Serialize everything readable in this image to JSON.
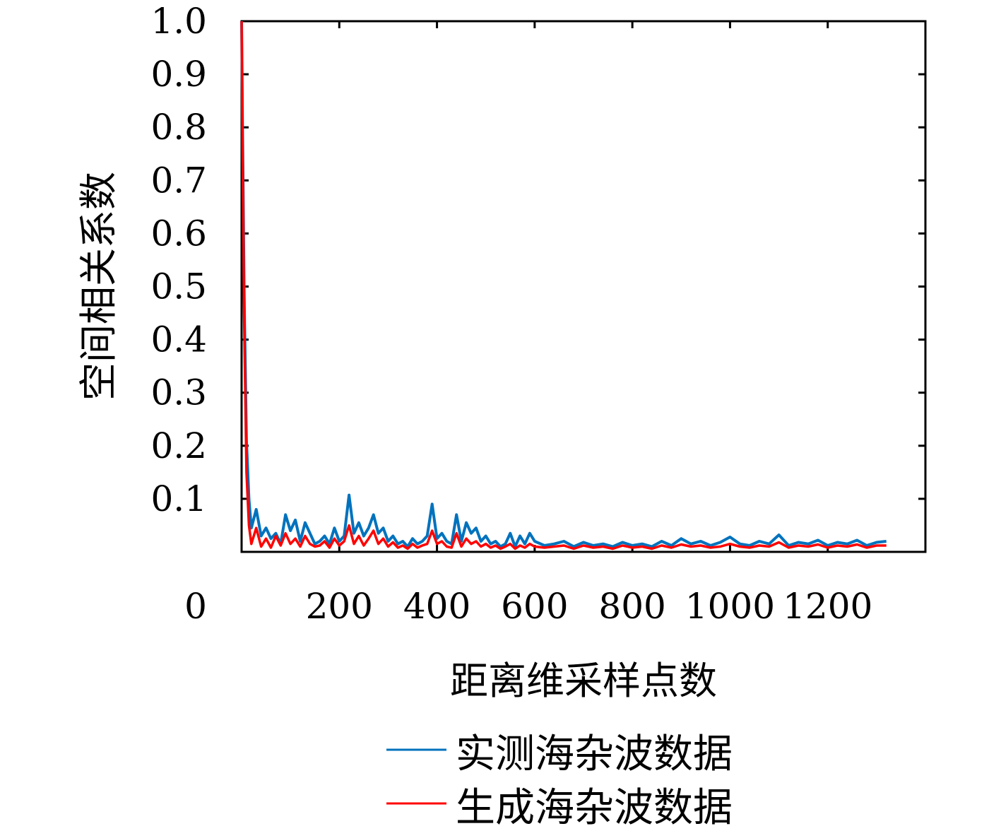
{
  "chart_data": {
    "type": "line",
    "title": "",
    "xlabel": "距离维采样点数",
    "ylabel": "空间相关系数",
    "xlim": [
      0,
      1400
    ],
    "ylim": [
      0,
      1.0
    ],
    "x_ticks": [
      0,
      200,
      400,
      600,
      800,
      1000,
      1200
    ],
    "x_tick_labels": [
      "0",
      "200",
      "400",
      "600",
      "800",
      "1000",
      "1200"
    ],
    "y_ticks": [
      0.1,
      0.2,
      0.3,
      0.4,
      0.5,
      0.6,
      0.7,
      0.8,
      0.9,
      1.0
    ],
    "y_tick_labels": [
      "0.1",
      "0.2",
      "0.3",
      "0.4",
      "0.5",
      "0.6",
      "0.7",
      "0.8",
      "0.9",
      "1.0"
    ],
    "grid": false,
    "legend_position": "bottom",
    "series": [
      {
        "name": "实测海杂波数据",
        "color": "#0072BD",
        "x": [
          0,
          5,
          10,
          15,
          20,
          30,
          40,
          50,
          60,
          70,
          80,
          90,
          100,
          110,
          120,
          130,
          140,
          150,
          160,
          170,
          180,
          190,
          200,
          210,
          220,
          230,
          240,
          250,
          260,
          270,
          280,
          290,
          300,
          310,
          320,
          330,
          340,
          350,
          360,
          370,
          380,
          390,
          400,
          410,
          420,
          430,
          440,
          450,
          460,
          470,
          480,
          490,
          500,
          510,
          520,
          530,
          540,
          550,
          560,
          570,
          580,
          590,
          600,
          620,
          640,
          660,
          680,
          700,
          720,
          740,
          760,
          780,
          800,
          820,
          840,
          860,
          880,
          900,
          920,
          940,
          960,
          980,
          1000,
          1020,
          1040,
          1060,
          1080,
          1100,
          1120,
          1140,
          1160,
          1180,
          1200,
          1220,
          1240,
          1260,
          1280,
          1300,
          1320
        ],
        "values": [
          1.0,
          0.5,
          0.21,
          0.1,
          0.045,
          0.08,
          0.03,
          0.045,
          0.025,
          0.035,
          0.015,
          0.07,
          0.04,
          0.06,
          0.02,
          0.055,
          0.035,
          0.015,
          0.02,
          0.03,
          0.015,
          0.045,
          0.02,
          0.03,
          0.107,
          0.035,
          0.055,
          0.03,
          0.045,
          0.07,
          0.035,
          0.045,
          0.02,
          0.03,
          0.015,
          0.02,
          0.01,
          0.025,
          0.015,
          0.02,
          0.03,
          0.09,
          0.025,
          0.035,
          0.02,
          0.015,
          0.07,
          0.02,
          0.055,
          0.035,
          0.045,
          0.02,
          0.03,
          0.015,
          0.02,
          0.01,
          0.015,
          0.035,
          0.01,
          0.03,
          0.015,
          0.035,
          0.02,
          0.012,
          0.015,
          0.02,
          0.01,
          0.018,
          0.012,
          0.015,
          0.01,
          0.018,
          0.012,
          0.015,
          0.01,
          0.02,
          0.012,
          0.025,
          0.015,
          0.02,
          0.012,
          0.018,
          0.028,
          0.015,
          0.012,
          0.02,
          0.015,
          0.032,
          0.012,
          0.018,
          0.015,
          0.022,
          0.012,
          0.018,
          0.015,
          0.022,
          0.012,
          0.018,
          0.02
        ]
      },
      {
        "name": "生成海杂波数据",
        "color": "#FF0000",
        "x": [
          0,
          5,
          10,
          15,
          20,
          30,
          40,
          50,
          60,
          70,
          80,
          90,
          100,
          110,
          120,
          130,
          140,
          150,
          160,
          170,
          180,
          190,
          200,
          210,
          220,
          230,
          240,
          250,
          260,
          270,
          280,
          290,
          300,
          310,
          320,
          330,
          340,
          350,
          360,
          370,
          380,
          390,
          400,
          410,
          420,
          430,
          440,
          450,
          460,
          470,
          480,
          490,
          500,
          510,
          520,
          530,
          540,
          550,
          560,
          570,
          580,
          590,
          600,
          620,
          640,
          660,
          680,
          700,
          720,
          740,
          760,
          780,
          800,
          820,
          840,
          860,
          880,
          900,
          920,
          940,
          960,
          980,
          1000,
          1020,
          1040,
          1060,
          1080,
          1100,
          1120,
          1140,
          1160,
          1180,
          1200,
          1220,
          1240,
          1260,
          1280,
          1300,
          1320
        ],
        "values": [
          1.0,
          0.45,
          0.15,
          0.05,
          0.015,
          0.045,
          0.01,
          0.025,
          0.008,
          0.03,
          0.012,
          0.035,
          0.015,
          0.025,
          0.01,
          0.03,
          0.015,
          0.01,
          0.012,
          0.02,
          0.008,
          0.025,
          0.012,
          0.02,
          0.05,
          0.015,
          0.03,
          0.012,
          0.025,
          0.04,
          0.015,
          0.025,
          0.01,
          0.018,
          0.008,
          0.012,
          0.006,
          0.015,
          0.008,
          0.012,
          0.015,
          0.04,
          0.015,
          0.02,
          0.01,
          0.008,
          0.035,
          0.01,
          0.025,
          0.015,
          0.02,
          0.01,
          0.015,
          0.008,
          0.012,
          0.006,
          0.01,
          0.015,
          0.006,
          0.012,
          0.008,
          0.015,
          0.01,
          0.008,
          0.01,
          0.012,
          0.006,
          0.012,
          0.008,
          0.01,
          0.006,
          0.012,
          0.008,
          0.01,
          0.006,
          0.012,
          0.008,
          0.014,
          0.01,
          0.012,
          0.008,
          0.01,
          0.015,
          0.01,
          0.008,
          0.012,
          0.01,
          0.018,
          0.008,
          0.012,
          0.01,
          0.014,
          0.008,
          0.012,
          0.01,
          0.014,
          0.008,
          0.012,
          0.012
        ]
      }
    ]
  }
}
